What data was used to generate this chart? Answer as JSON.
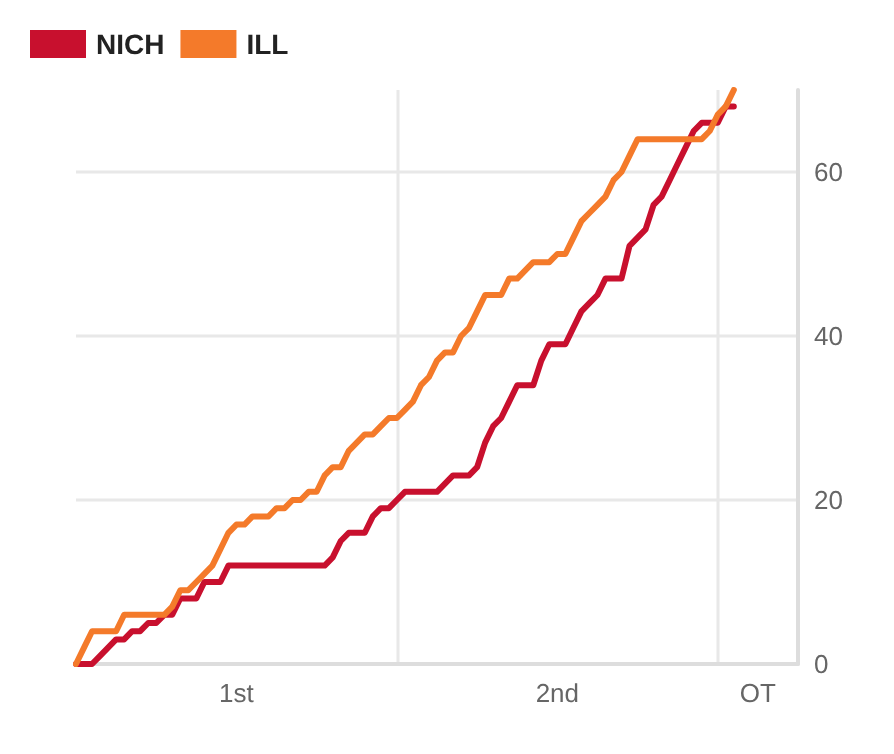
{
  "chart_data": {
    "type": "line",
    "legend": "top left",
    "grid": true,
    "marker": "none",
    "line_style": "solid",
    "categories": [
      null,
      null,
      null,
      null,
      null,
      null,
      null,
      null,
      null,
      null,
      null,
      null,
      null,
      null,
      null,
      null,
      null,
      null,
      null,
      null,
      "1st",
      null,
      null,
      null,
      null,
      null,
      null,
      null,
      null,
      null,
      null,
      null,
      null,
      null,
      null,
      null,
      null,
      null,
      null,
      null,
      null,
      null,
      null,
      null,
      null,
      null,
      null,
      null,
      null,
      null,
      null,
      null,
      null,
      null,
      null,
      null,
      null,
      null,
      null,
      null,
      "2nd",
      null,
      null,
      null,
      null,
      null,
      null,
      null,
      null,
      null,
      null,
      null,
      null,
      null,
      null,
      null,
      null,
      null,
      null,
      null,
      null,
      null,
      null,
      null,
      null,
      "OT",
      null,
      null,
      null,
      null,
      null
    ],
    "ylim": [
      0,
      70
    ],
    "yticks": [
      0,
      20,
      40,
      60
    ],
    "series": [
      {
        "name": "NICH",
        "color": "#c8102e",
        "values": [
          0,
          0,
          0,
          1,
          2,
          3,
          3,
          4,
          4,
          5,
          5,
          6,
          6,
          8,
          8,
          8,
          10,
          10,
          10,
          12,
          12,
          12,
          12,
          12,
          12,
          12,
          12,
          12,
          12,
          12,
          12,
          12,
          13,
          15,
          16,
          16,
          16,
          18,
          19,
          19,
          20,
          21,
          21,
          21,
          21,
          21,
          22,
          23,
          23,
          23,
          24,
          27,
          29,
          30,
          32,
          34,
          34,
          34,
          37,
          39,
          39,
          39,
          41,
          43,
          44,
          45,
          47,
          47,
          47,
          51,
          52,
          53,
          56,
          57,
          59,
          61,
          63,
          65,
          66,
          66,
          66,
          68,
          68,
          null,
          null,
          null,
          null,
          null,
          null,
          null,
          null
        ]
      },
      {
        "name": "ILL",
        "color": "#f47a2a",
        "values": [
          0,
          2,
          4,
          4,
          4,
          4,
          6,
          6,
          6,
          6,
          6,
          6,
          7,
          9,
          9,
          10,
          11,
          12,
          14,
          16,
          17,
          17,
          18,
          18,
          18,
          19,
          19,
          20,
          20,
          21,
          21,
          23,
          24,
          24,
          26,
          27,
          28,
          28,
          29,
          30,
          30,
          31,
          32,
          34,
          35,
          37,
          38,
          38,
          40,
          41,
          43,
          45,
          45,
          45,
          47,
          47,
          48,
          49,
          49,
          49,
          50,
          50,
          52,
          54,
          55,
          56,
          57,
          59,
          60,
          62,
          64,
          64,
          64,
          64,
          64,
          64,
          64,
          64,
          64,
          65,
          67,
          68,
          70,
          null,
          null,
          null,
          null,
          null,
          null,
          null,
          null
        ]
      }
    ]
  }
}
